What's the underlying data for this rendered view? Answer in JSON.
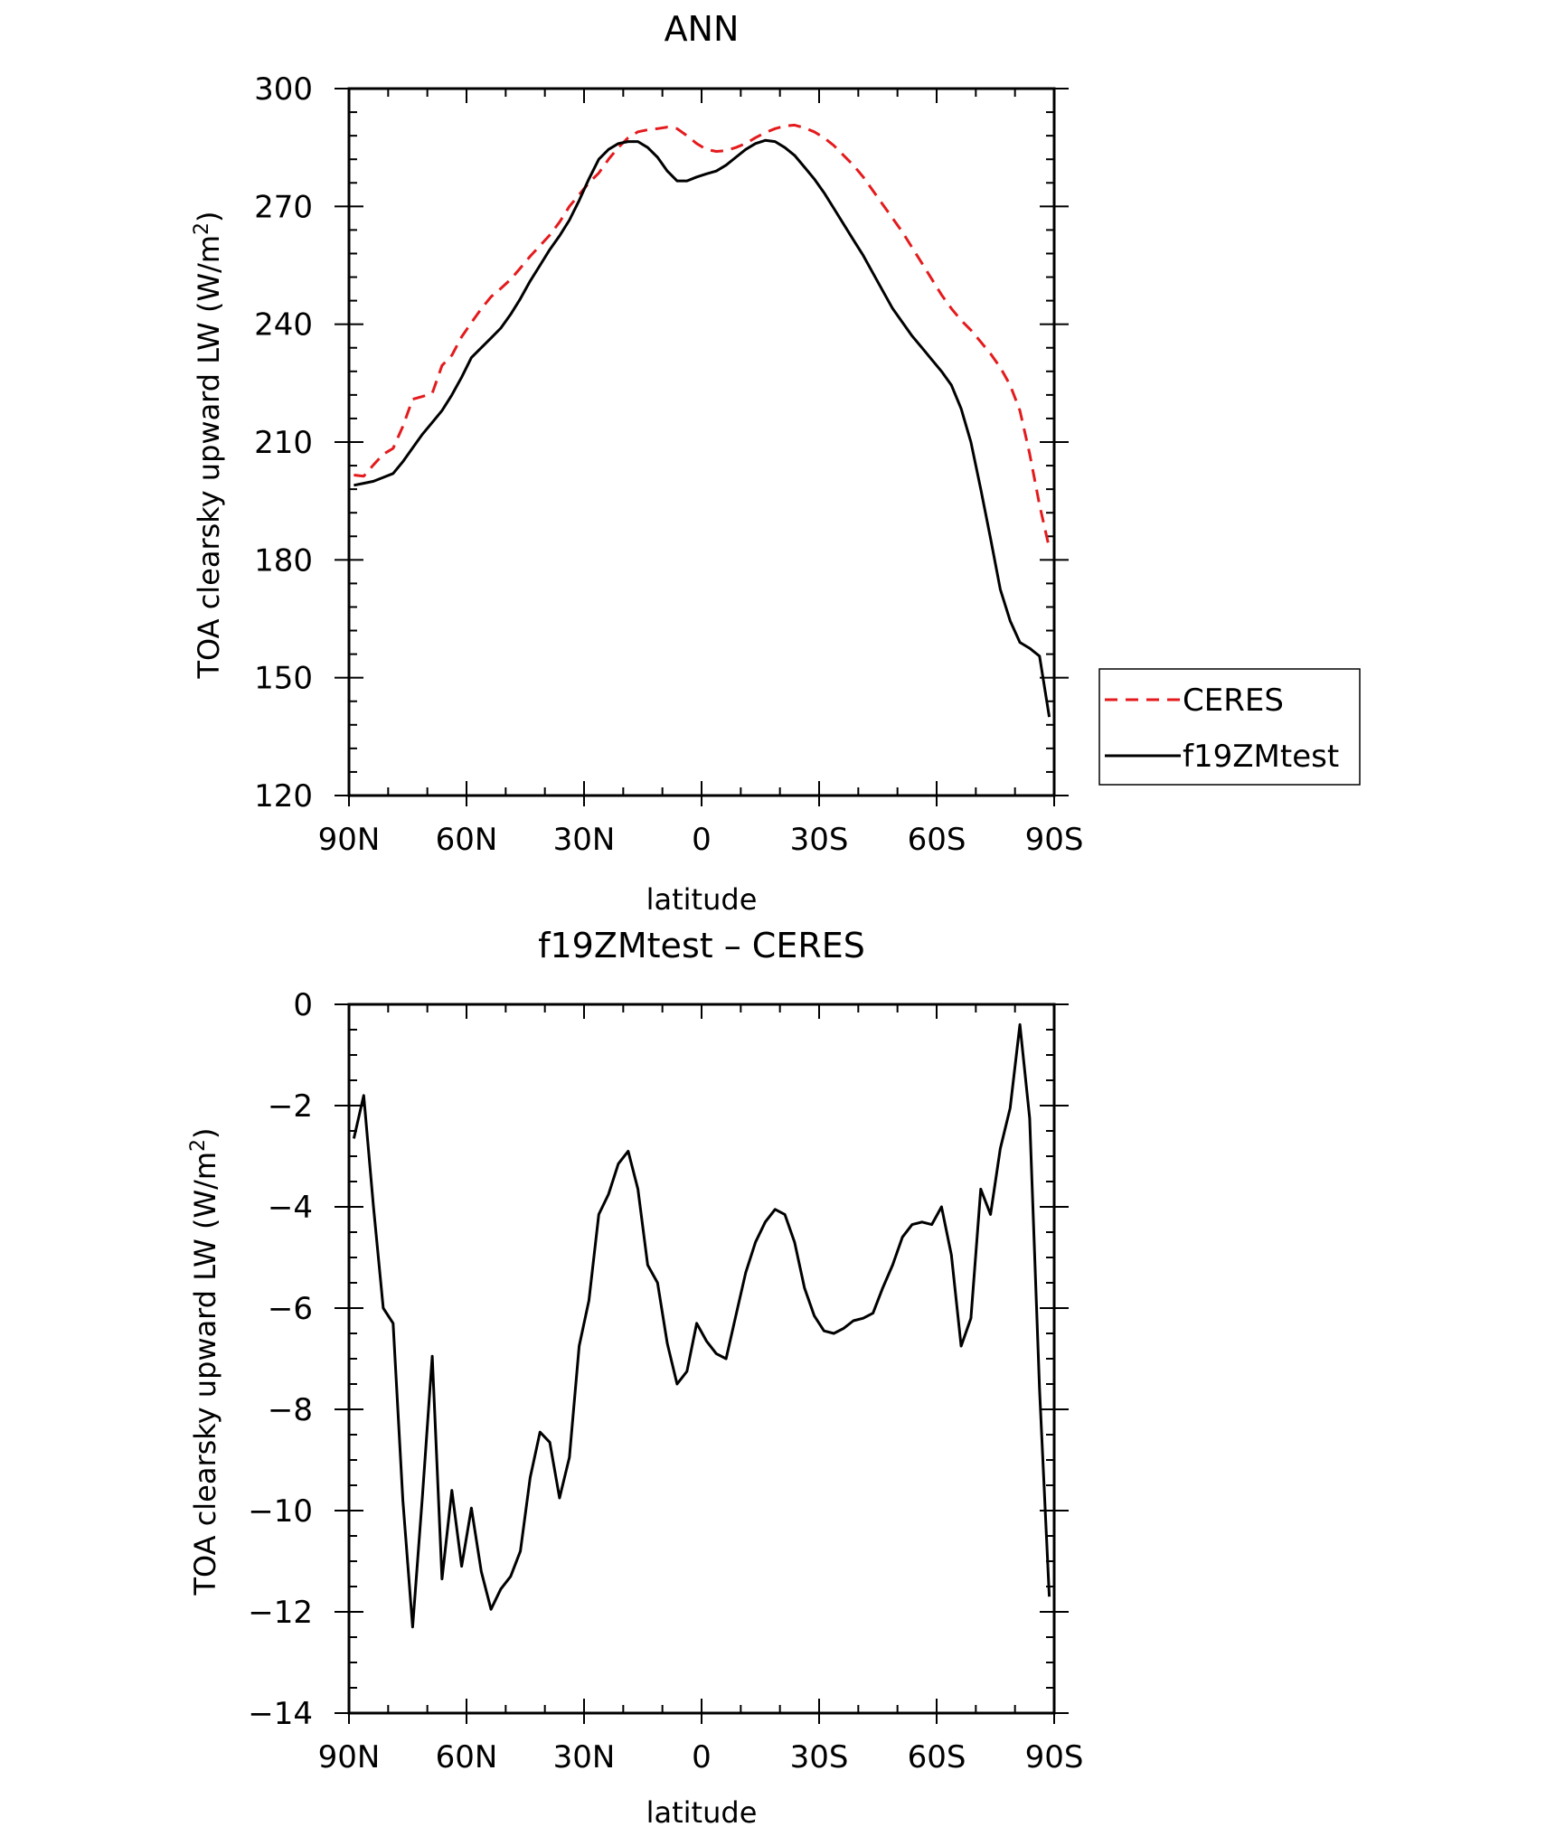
{
  "chart_data": [
    {
      "type": "line",
      "title": "ANN",
      "xlabel": "latitude",
      "ylabel_main": "TOA clearsky upward LW (W/m",
      "ylabel_sup": "2",
      "ylabel_close": ")",
      "xlim": [
        90,
        -90
      ],
      "ylim": [
        120,
        300
      ],
      "x_ticks": [
        {
          "value": 90,
          "label": "90N"
        },
        {
          "value": 60,
          "label": "60N"
        },
        {
          "value": 30,
          "label": "30N"
        },
        {
          "value": 0,
          "label": "0"
        },
        {
          "value": -30,
          "label": "30S"
        },
        {
          "value": -60,
          "label": "60S"
        },
        {
          "value": -90,
          "label": "90S"
        }
      ],
      "y_ticks": [
        120,
        150,
        180,
        210,
        240,
        270,
        300
      ],
      "legend_position": "right",
      "series": [
        {
          "name": "CERES",
          "color": "#e41a1c",
          "dash": "dashed",
          "points": [
            [
              88.75,
              201.6
            ],
            [
              86.25,
              201.3
            ],
            [
              83.75,
              204.2
            ],
            [
              81.25,
              206.9
            ],
            [
              78.75,
              208.4
            ],
            [
              76.25,
              214.0
            ],
            [
              73.75,
              220.9
            ],
            [
              71.25,
              221.6
            ],
            [
              68.75,
              222.4
            ],
            [
              66.25,
              229.5
            ],
            [
              63.75,
              232.1
            ],
            [
              61.25,
              236.8
            ],
            [
              58.75,
              240.4
            ],
            [
              56.25,
              243.9
            ],
            [
              53.75,
              247.0
            ],
            [
              51.25,
              249.1
            ],
            [
              48.75,
              251.4
            ],
            [
              46.25,
              254.3
            ],
            [
              43.75,
              257.3
            ],
            [
              41.25,
              260.0
            ],
            [
              38.75,
              262.7
            ],
            [
              36.25,
              266.0
            ],
            [
              33.75,
              270.0
            ],
            [
              31.25,
              273.0
            ],
            [
              28.75,
              276.0
            ],
            [
              26.25,
              278.5
            ],
            [
              23.75,
              282.0
            ],
            [
              21.25,
              285.0
            ],
            [
              18.75,
              287.5
            ],
            [
              16.25,
              289.0
            ],
            [
              13.75,
              289.5
            ],
            [
              11.25,
              289.8
            ],
            [
              8.75,
              290.2
            ],
            [
              6.25,
              289.8
            ],
            [
              3.75,
              288.0
            ],
            [
              1.25,
              286.0
            ],
            [
              -1.25,
              284.5
            ],
            [
              -3.75,
              284.0
            ],
            [
              -6.25,
              284.2
            ],
            [
              -8.75,
              285.0
            ],
            [
              -11.25,
              286.0
            ],
            [
              -13.75,
              287.5
            ],
            [
              -16.25,
              288.8
            ],
            [
              -18.75,
              289.8
            ],
            [
              -21.25,
              290.5
            ],
            [
              -23.75,
              290.7
            ],
            [
              -26.25,
              290.0
            ],
            [
              -28.75,
              289.0
            ],
            [
              -31.25,
              287.5
            ],
            [
              -33.75,
              285.5
            ],
            [
              -36.25,
              283.0
            ],
            [
              -38.75,
              280.5
            ],
            [
              -41.25,
              277.5
            ],
            [
              -43.75,
              274.0
            ],
            [
              -46.25,
              270.5
            ],
            [
              -48.75,
              267.0
            ],
            [
              -51.25,
              263.5
            ],
            [
              -53.75,
              259.5
            ],
            [
              -56.25,
              255.5
            ],
            [
              -58.75,
              251.5
            ],
            [
              -61.25,
              247.5
            ],
            [
              -63.75,
              244.0
            ],
            [
              -66.25,
              241.0
            ],
            [
              -68.75,
              238.5
            ],
            [
              -71.25,
              235.5
            ],
            [
              -73.75,
              232.5
            ],
            [
              -76.25,
              229.0
            ],
            [
              -78.75,
              224.5
            ],
            [
              -81.25,
              218.0
            ],
            [
              -83.75,
              207.0
            ],
            [
              -86.25,
              194.0
            ],
            [
              -88.75,
              183.0
            ]
          ]
        },
        {
          "name": "f19ZMtest",
          "color": "#000000",
          "dash": "solid",
          "points": [
            [
              88.75,
              199.0
            ],
            [
              86.25,
              199.5
            ],
            [
              83.75,
              200.0
            ],
            [
              81.25,
              201.0
            ],
            [
              78.75,
              202.0
            ],
            [
              76.25,
              205.0
            ],
            [
              73.75,
              208.5
            ],
            [
              71.25,
              212.0
            ],
            [
              68.75,
              215.0
            ],
            [
              66.25,
              218.0
            ],
            [
              63.75,
              222.0
            ],
            [
              61.25,
              226.5
            ],
            [
              58.75,
              231.5
            ],
            [
              56.25,
              234.0
            ],
            [
              53.75,
              236.5
            ],
            [
              51.25,
              239.0
            ],
            [
              48.75,
              242.5
            ],
            [
              46.25,
              246.5
            ],
            [
              43.75,
              251.0
            ],
            [
              41.25,
              255.0
            ],
            [
              38.75,
              259.0
            ],
            [
              36.25,
              262.5
            ],
            [
              33.75,
              266.5
            ],
            [
              31.25,
              271.5
            ],
            [
              28.75,
              277.0
            ],
            [
              26.25,
              282.0
            ],
            [
              23.75,
              284.5
            ],
            [
              21.25,
              286.0
            ],
            [
              18.75,
              286.5
            ],
            [
              16.25,
              286.5
            ],
            [
              13.75,
              285.0
            ],
            [
              11.25,
              282.5
            ],
            [
              8.75,
              279.0
            ],
            [
              6.25,
              276.5
            ],
            [
              3.75,
              276.5
            ],
            [
              1.25,
              277.5
            ],
            [
              -1.25,
              278.3
            ],
            [
              -3.75,
              279.0
            ],
            [
              -6.25,
              280.5
            ],
            [
              -8.75,
              282.5
            ],
            [
              -11.25,
              284.5
            ],
            [
              -13.75,
              286.0
            ],
            [
              -16.25,
              286.8
            ],
            [
              -18.75,
              286.5
            ],
            [
              -21.25,
              285.0
            ],
            [
              -23.75,
              283.0
            ],
            [
              -26.25,
              280.0
            ],
            [
              -28.75,
              277.0
            ],
            [
              -31.25,
              273.5
            ],
            [
              -33.75,
              269.5
            ],
            [
              -36.25,
              265.5
            ],
            [
              -38.75,
              261.5
            ],
            [
              -41.25,
              257.5
            ],
            [
              -43.75,
              253.0
            ],
            [
              -46.25,
              248.5
            ],
            [
              -48.75,
              244.0
            ],
            [
              -51.25,
              240.5
            ],
            [
              -53.75,
              237.0
            ],
            [
              -56.25,
              234.0
            ],
            [
              -58.75,
              231.0
            ],
            [
              -61.25,
              228.0
            ],
            [
              -63.75,
              224.5
            ],
            [
              -66.25,
              218.5
            ],
            [
              -68.75,
              210.0
            ],
            [
              -71.25,
              198.0
            ],
            [
              -73.75,
              185.5
            ],
            [
              -76.25,
              172.5
            ],
            [
              -78.75,
              164.5
            ],
            [
              -81.25,
              159.0
            ],
            [
              -83.75,
              157.5
            ],
            [
              -86.25,
              155.5
            ],
            [
              -88.75,
              140.0
            ]
          ]
        }
      ]
    },
    {
      "type": "line",
      "title": "f19ZMtest – CERES",
      "xlabel": "latitude",
      "ylabel_main": "TOA clearsky upward LW (W/m",
      "ylabel_sup": "2",
      "ylabel_close": ")",
      "xlim": [
        90,
        -90
      ],
      "ylim": [
        -14,
        0
      ],
      "x_ticks": [
        {
          "value": 90,
          "label": "90N"
        },
        {
          "value": 60,
          "label": "60N"
        },
        {
          "value": 30,
          "label": "30N"
        },
        {
          "value": 0,
          "label": "0"
        },
        {
          "value": -30,
          "label": "30S"
        },
        {
          "value": -60,
          "label": "60S"
        },
        {
          "value": -90,
          "label": "90S"
        }
      ],
      "y_ticks": [
        {
          "value": 0,
          "label": "0"
        },
        {
          "value": -2,
          "label": "−2"
        },
        {
          "value": -4,
          "label": "−4"
        },
        {
          "value": -6,
          "label": "−6"
        },
        {
          "value": -8,
          "label": "−8"
        },
        {
          "value": -10,
          "label": "−10"
        },
        {
          "value": -12,
          "label": "−12"
        },
        {
          "value": -14,
          "label": "−14"
        }
      ],
      "series": [
        {
          "color": "#000000",
          "dash": "solid",
          "points": [
            [
              88.75,
              -2.65
            ],
            [
              86.25,
              -1.8
            ],
            [
              83.75,
              -4.0
            ],
            [
              81.25,
              -6.0
            ],
            [
              78.75,
              -6.3
            ],
            [
              76.25,
              -9.8
            ],
            [
              73.75,
              -12.3
            ],
            [
              71.25,
              -9.7
            ],
            [
              68.75,
              -6.95
            ],
            [
              66.25,
              -11.35
            ],
            [
              63.75,
              -9.6
            ],
            [
              61.25,
              -11.1
            ],
            [
              58.75,
              -9.95
            ],
            [
              56.25,
              -11.2
            ],
            [
              53.75,
              -11.95
            ],
            [
              51.25,
              -11.55
            ],
            [
              48.75,
              -11.3
            ],
            [
              46.25,
              -10.8
            ],
            [
              43.75,
              -9.35
            ],
            [
              41.25,
              -8.45
            ],
            [
              38.75,
              -8.65
            ],
            [
              36.25,
              -9.75
            ],
            [
              33.75,
              -8.95
            ],
            [
              31.25,
              -6.75
            ],
            [
              28.75,
              -5.85
            ],
            [
              26.25,
              -4.15
            ],
            [
              23.75,
              -3.75
            ],
            [
              21.25,
              -3.15
            ],
            [
              18.75,
              -2.9
            ],
            [
              16.25,
              -3.65
            ],
            [
              13.75,
              -5.15
            ],
            [
              11.25,
              -5.5
            ],
            [
              8.75,
              -6.7
            ],
            [
              6.25,
              -7.5
            ],
            [
              3.75,
              -7.25
            ],
            [
              1.25,
              -6.3
            ],
            [
              -1.25,
              -6.65
            ],
            [
              -3.75,
              -6.9
            ],
            [
              -6.25,
              -7.0
            ],
            [
              -8.75,
              -6.15
            ],
            [
              -11.25,
              -5.3
            ],
            [
              -13.75,
              -4.7
            ],
            [
              -16.25,
              -4.3
            ],
            [
              -18.75,
              -4.05
            ],
            [
              -21.25,
              -4.15
            ],
            [
              -23.75,
              -4.7
            ],
            [
              -26.25,
              -5.6
            ],
            [
              -28.75,
              -6.15
            ],
            [
              -31.25,
              -6.45
            ],
            [
              -33.75,
              -6.5
            ],
            [
              -36.25,
              -6.4
            ],
            [
              -38.75,
              -6.25
            ],
            [
              -41.25,
              -6.2
            ],
            [
              -43.75,
              -6.1
            ],
            [
              -46.25,
              -5.6
            ],
            [
              -48.75,
              -5.15
            ],
            [
              -51.25,
              -4.6
            ],
            [
              -53.75,
              -4.35
            ],
            [
              -56.25,
              -4.3
            ],
            [
              -58.75,
              -4.35
            ],
            [
              -61.25,
              -4.0
            ],
            [
              -63.75,
              -4.95
            ],
            [
              -66.25,
              -6.75
            ],
            [
              -68.75,
              -6.2
            ],
            [
              -71.25,
              -3.65
            ],
            [
              -73.75,
              -4.15
            ],
            [
              -76.25,
              -2.85
            ],
            [
              -78.75,
              -2.05
            ],
            [
              -81.25,
              -0.4
            ],
            [
              -83.75,
              -2.25
            ],
            [
              -86.25,
              -7.6
            ],
            [
              -88.75,
              -11.7
            ]
          ]
        }
      ]
    }
  ]
}
